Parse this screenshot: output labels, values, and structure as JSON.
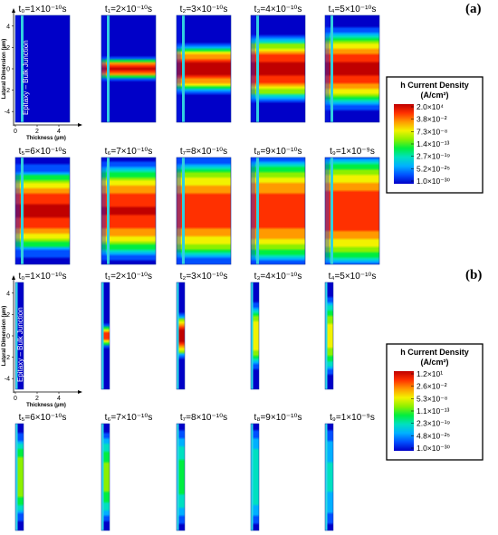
{
  "figure": {
    "panel_labels": [
      "(a)",
      "(b)"
    ]
  },
  "chart_data": [
    {
      "type": "heatmap",
      "panel": "(a)",
      "quantity": "h Current Density",
      "colorbar": {
        "title": "h Current Density",
        "unit": "(A/cm²)",
        "scale": "log",
        "ticks": [
          "2.0×10⁴",
          "3.8×10⁻²",
          "7.3×10⁻⁸",
          "1.4×10⁻¹³",
          "2.7×10⁻¹⁹",
          "5.2×10⁻²⁵",
          "1.0×10⁻³⁰"
        ],
        "colors": [
          "#c00000",
          "#ff3000",
          "#ff9a00",
          "#f2f200",
          "#8cf000",
          "#00ee40",
          "#00e0c0",
          "#00b0ff",
          "#0050ff",
          "#0000c8"
        ]
      },
      "xlabel": "Thickness (µm)",
      "ylabel": "Lateral Dimension (µm)",
      "junction_label": "Epitaxy – Bulk Junction",
      "xlim": [
        0,
        5
      ],
      "ylim": [
        -5,
        5
      ],
      "xticks": [
        "0",
        "2",
        "4"
      ],
      "yticks": [
        "4",
        "2",
        "0",
        "-2",
        "-4"
      ],
      "frames": [
        {
          "label": "t₀=1×10⁻¹⁰s",
          "half_width": 0,
          "peak": 0.0
        },
        {
          "label": "t₁=2×10⁻¹⁰s",
          "half_width": 0.8,
          "peak": 0.95
        },
        {
          "label": "t₂=3×10⁻¹⁰s",
          "half_width": 1.8,
          "peak": 1.0
        },
        {
          "label": "t₃=4×10⁻¹⁰s",
          "half_width": 2.4,
          "peak": 0.98
        },
        {
          "label": "t₄=5×10⁻¹⁰s",
          "half_width": 2.9,
          "peak": 0.97
        },
        {
          "label": "t₅=6×10⁻¹⁰s",
          "half_width": 3.2,
          "peak": 0.96
        },
        {
          "label": "t₆=7×10⁻¹⁰s",
          "half_width": 3.5,
          "peak": 0.95
        },
        {
          "label": "t₇=8×10⁻¹⁰s",
          "half_width": 3.8,
          "peak": 0.94
        },
        {
          "label": "t₈=9×10⁻¹⁰s",
          "half_width": 4.0,
          "peak": 0.93
        },
        {
          "label": "t₉=1×10⁻⁹s",
          "half_width": 4.3,
          "peak": 0.92
        }
      ]
    },
    {
      "type": "heatmap",
      "panel": "(b)",
      "quantity": "h Current Density",
      "colorbar": {
        "title": "h Current Density",
        "unit": "(A/cm²)",
        "scale": "log",
        "ticks": [
          "1.2×10¹",
          "2.6×10⁻²",
          "5.3×10⁻⁸",
          "1.1×10⁻¹³",
          "2.3×10⁻¹⁹",
          "4.8×10⁻²⁵",
          "1.0×10⁻³⁰"
        ],
        "colors": [
          "#c00000",
          "#ff3000",
          "#ff9a00",
          "#f2f200",
          "#8cf000",
          "#00ee40",
          "#00e0c0",
          "#00b0ff",
          "#0050ff",
          "#0000c8"
        ]
      },
      "xlabel": "Thickness (µm)",
      "ylabel": "Lateral Dimension (µm)",
      "junction_label": "Epitaxy – Bulk Junction",
      "xlim": [
        0,
        5
      ],
      "ylim": [
        -5,
        5
      ],
      "xticks": [
        "0",
        "2",
        "4"
      ],
      "yticks": [
        "4",
        "2",
        "0",
        "-2",
        "-4"
      ],
      "frames": [
        {
          "label": "t₀=1×10⁻¹⁰s",
          "half_width": 0,
          "peak": 0.0
        },
        {
          "label": "t₁=2×10⁻¹⁰s",
          "half_width": 0.8,
          "peak": 0.9
        },
        {
          "label": "t₂=3×10⁻¹⁰s",
          "half_width": 1.6,
          "peak": 1.0
        },
        {
          "label": "t₃=4×10⁻¹⁰s",
          "half_width": 2.4,
          "peak": 0.72
        },
        {
          "label": "t₄=5×10⁻¹⁰s",
          "half_width": 2.8,
          "peak": 0.66
        },
        {
          "label": "t₅=6×10⁻¹⁰s",
          "half_width": 3.2,
          "peak": 0.6
        },
        {
          "label": "t₆=7×10⁻¹⁰s",
          "half_width": 3.3,
          "peak": 0.55
        },
        {
          "label": "t₇=8×10⁻¹⁰s",
          "half_width": 3.5,
          "peak": 0.45
        },
        {
          "label": "t₈=9×10⁻¹⁰s",
          "half_width": 3.6,
          "peak": 0.38
        },
        {
          "label": "t₉=1×10⁻⁹s",
          "half_width": 3.8,
          "peak": 0.3
        }
      ]
    }
  ]
}
